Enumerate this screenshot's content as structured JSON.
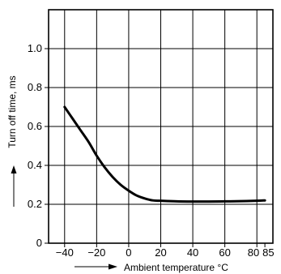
{
  "chart_data": {
    "type": "line",
    "title": "",
    "xlabel": "Ambient temperature °C",
    "ylabel": "Turn off time, ms",
    "xlim": [
      -50,
      90
    ],
    "ylim": [
      0,
      1.2
    ],
    "grid": true,
    "x_ticks": [
      -40,
      -20,
      0,
      20,
      40,
      60,
      80,
      85
    ],
    "x_tick_labels": [
      "−40",
      "−20",
      "0",
      "20",
      "40",
      "60",
      "80",
      "85"
    ],
    "y_ticks": [
      0,
      0.2,
      0.4,
      0.6,
      0.8,
      1.0
    ],
    "y_tick_labels": [
      "0",
      "0.2",
      "0.4",
      "0.6",
      "0.8",
      "1.0"
    ],
    "series": [
      {
        "x": [
          -40,
          -35,
          -30,
          -25,
          -20,
          -15,
          -10,
          -5,
          0,
          5,
          10,
          15,
          20,
          30,
          40,
          50,
          60,
          70,
          80,
          85
        ],
        "y": [
          0.7,
          0.64,
          0.58,
          0.52,
          0.45,
          0.39,
          0.34,
          0.3,
          0.27,
          0.245,
          0.23,
          0.22,
          0.218,
          0.215,
          0.214,
          0.214,
          0.215,
          0.216,
          0.218,
          0.22
        ]
      }
    ]
  }
}
